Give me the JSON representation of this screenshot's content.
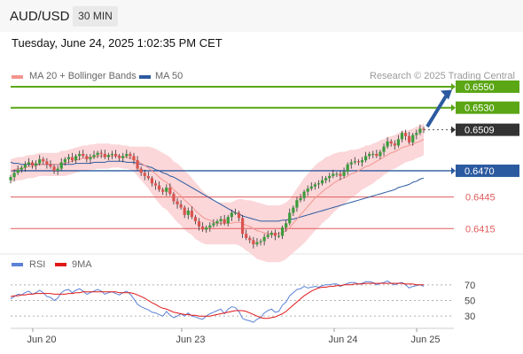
{
  "header": {
    "symbol": "AUD/USD",
    "timeframe": "30 MIN"
  },
  "datetime": "Tuesday, June 24, 2025 1:02:35 PM CET",
  "credit": "Research © 2025 Trading Central",
  "legend_price": [
    {
      "label": "MA 20 + Bollinger Bands",
      "color": "#f3958f"
    },
    {
      "label": "MA 50",
      "color": "#2c5aa0"
    }
  ],
  "legend_rsi": [
    {
      "label": "RSI",
      "color": "#5a82d6"
    },
    {
      "label": "9MA",
      "color": "#e01818"
    }
  ],
  "colors": {
    "resistance": "#5aa614",
    "pivot": "#2c5aa0",
    "support": "#e05c5c",
    "last": "#333333",
    "arrow": "#2c5aa0",
    "up": "#3c9c3c",
    "down": "#d9534f",
    "band": "#fbd7d9"
  },
  "chart_data": [
    {
      "type": "candlestick",
      "title": "AUD/USD 30 MIN",
      "x_tick_labels": [
        "Jun 20",
        "Jun 23",
        "Jun 24",
        "Jun 25"
      ],
      "ylim": [
        0.6395,
        0.6555
      ],
      "levels": [
        {
          "value": 0.655,
          "label": "0.6550",
          "kind": "resistance"
        },
        {
          "value": 0.653,
          "label": "0.6530",
          "kind": "resistance"
        },
        {
          "value": 0.6509,
          "label": "0.6509",
          "kind": "last"
        },
        {
          "value": 0.647,
          "label": "0.6470",
          "kind": "pivot"
        },
        {
          "value": 0.6445,
          "label": "0.6445",
          "kind": "support"
        },
        {
          "value": 0.6415,
          "label": "0.6415",
          "kind": "support"
        }
      ],
      "close": [
        0.6464,
        0.6468,
        0.6471,
        0.6473,
        0.6476,
        0.6478,
        0.6475,
        0.6477,
        0.6481,
        0.6479,
        0.6476,
        0.6474,
        0.647,
        0.6472,
        0.6478,
        0.6481,
        0.6483,
        0.648,
        0.6484,
        0.6486,
        0.6484,
        0.6481,
        0.6483,
        0.6485,
        0.6487,
        0.6486,
        0.6483,
        0.6485,
        0.6486,
        0.6484,
        0.6482,
        0.6484,
        0.6486,
        0.6484,
        0.648,
        0.6472,
        0.6468,
        0.6465,
        0.6463,
        0.6458,
        0.6456,
        0.6452,
        0.645,
        0.6454,
        0.6448,
        0.6441,
        0.6438,
        0.6435,
        0.6428,
        0.6432,
        0.6426,
        0.6422,
        0.6417,
        0.6414,
        0.6416,
        0.6418,
        0.642,
        0.6422,
        0.6424,
        0.642,
        0.6426,
        0.643,
        0.643,
        0.6425,
        0.641,
        0.6406,
        0.6404,
        0.64,
        0.6402,
        0.6403,
        0.6407,
        0.6409,
        0.6411,
        0.6408,
        0.6408,
        0.6416,
        0.642,
        0.643,
        0.6435,
        0.6442,
        0.6444,
        0.645,
        0.6453,
        0.6455,
        0.6457,
        0.6458,
        0.6461,
        0.6463,
        0.6465,
        0.6467,
        0.6467,
        0.6465,
        0.6469,
        0.6476,
        0.6478,
        0.6479,
        0.6478,
        0.648,
        0.6484,
        0.6486,
        0.6486,
        0.6484,
        0.6488,
        0.6493,
        0.6498,
        0.6496,
        0.6494,
        0.65,
        0.6506,
        0.6503,
        0.6497,
        0.6504,
        0.6506,
        0.651,
        0.6509
      ],
      "ma20": [
        0.647,
        0.6471,
        0.6472,
        0.6472,
        0.6473,
        0.6474,
        0.6474,
        0.6475,
        0.6476,
        0.6476,
        0.6476,
        0.6476,
        0.6476,
        0.6476,
        0.6477,
        0.6477,
        0.6478,
        0.6479,
        0.648,
        0.6481,
        0.6482,
        0.6482,
        0.6483,
        0.6483,
        0.6484,
        0.6484,
        0.6484,
        0.6484,
        0.6484,
        0.6484,
        0.6484,
        0.6483,
        0.6483,
        0.6482,
        0.6481,
        0.6479,
        0.6477,
        0.6475,
        0.6473,
        0.647,
        0.6467,
        0.6464,
        0.6461,
        0.6459,
        0.6456,
        0.6452,
        0.6449,
        0.6446,
        0.6442,
        0.6439,
        0.6436,
        0.6432,
        0.6429,
        0.6426,
        0.6424,
        0.6423,
        0.6421,
        0.642,
        0.642,
        0.642,
        0.642,
        0.642,
        0.6421,
        0.6421,
        0.642,
        0.6418,
        0.6417,
        0.6415,
        0.6413,
        0.6412,
        0.6411,
        0.641,
        0.641,
        0.641,
        0.641,
        0.6411,
        0.6413,
        0.6416,
        0.642,
        0.6424,
        0.6428,
        0.6432,
        0.6436,
        0.644,
        0.6444,
        0.6447,
        0.645,
        0.6453,
        0.6455,
        0.6458,
        0.646,
        0.6462,
        0.6463,
        0.6465,
        0.6467,
        0.6468,
        0.647,
        0.6472,
        0.6474,
        0.6475,
        0.6477,
        0.6479,
        0.6481,
        0.6483,
        0.6485,
        0.6487,
        0.6488,
        0.649,
        0.6492,
        0.6493,
        0.6494,
        0.6495,
        0.6497,
        0.6498,
        0.65
      ],
      "ma50": [
        0.6478,
        0.6477,
        0.6477,
        0.6476,
        0.6476,
        0.6476,
        0.6476,
        0.6476,
        0.6476,
        0.6476,
        0.6476,
        0.6476,
        0.6476,
        0.6476,
        0.6476,
        0.6476,
        0.6476,
        0.6476,
        0.6477,
        0.6477,
        0.6477,
        0.6477,
        0.6477,
        0.6478,
        0.6478,
        0.6478,
        0.6478,
        0.6479,
        0.6479,
        0.6479,
        0.6479,
        0.6479,
        0.6478,
        0.6478,
        0.6478,
        0.6477,
        0.6476,
        0.6475,
        0.6474,
        0.6473,
        0.6471,
        0.647,
        0.6468,
        0.6467,
        0.6465,
        0.6464,
        0.6462,
        0.646,
        0.6458,
        0.6456,
        0.6454,
        0.6452,
        0.645,
        0.6448,
        0.6446,
        0.6444,
        0.6442,
        0.644,
        0.6438,
        0.6436,
        0.6434,
        0.6432,
        0.643,
        0.6429,
        0.6427,
        0.6426,
        0.6425,
        0.6424,
        0.6423,
        0.6422,
        0.6422,
        0.6422,
        0.6422,
        0.6422,
        0.6422,
        0.6423,
        0.6423,
        0.6424,
        0.6424,
        0.6425,
        0.6426,
        0.6427,
        0.6428,
        0.6429,
        0.643,
        0.6431,
        0.6432,
        0.6433,
        0.6434,
        0.6435,
        0.6436,
        0.6437,
        0.6438,
        0.6439,
        0.644,
        0.6441,
        0.6442,
        0.6443,
        0.6444,
        0.6445,
        0.6446,
        0.6447,
        0.6448,
        0.6449,
        0.645,
        0.6451,
        0.6452,
        0.6454,
        0.6455,
        0.6456,
        0.6457,
        0.6459,
        0.646,
        0.6462,
        0.6463
      ],
      "band_width": [
        0.0011,
        0.0011,
        0.0011,
        0.0011,
        0.0011,
        0.0011,
        0.0011,
        0.0011,
        0.0011,
        0.0011,
        0.0011,
        0.0011,
        0.0011,
        0.0011,
        0.0012,
        0.0012,
        0.0012,
        0.0012,
        0.0012,
        0.0012,
        0.0012,
        0.0012,
        0.0012,
        0.0012,
        0.0012,
        0.0012,
        0.0012,
        0.0012,
        0.0011,
        0.0011,
        0.0011,
        0.0011,
        0.0011,
        0.0011,
        0.0012,
        0.0014,
        0.0016,
        0.0018,
        0.002,
        0.0022,
        0.0024,
        0.0025,
        0.0026,
        0.0026,
        0.0027,
        0.0027,
        0.0028,
        0.0028,
        0.0028,
        0.0028,
        0.0027,
        0.0027,
        0.0026,
        0.0025,
        0.0024,
        0.0023,
        0.0021,
        0.002,
        0.002,
        0.002,
        0.002,
        0.002,
        0.0021,
        0.0022,
        0.0023,
        0.0024,
        0.0025,
        0.0026,
        0.0027,
        0.0027,
        0.0027,
        0.0027,
        0.0027,
        0.0027,
        0.0027,
        0.0027,
        0.0027,
        0.0027,
        0.0028,
        0.0029,
        0.003,
        0.0031,
        0.0031,
        0.0031,
        0.0031,
        0.0031,
        0.003,
        0.003,
        0.0029,
        0.0028,
        0.0027,
        0.0026,
        0.0025,
        0.0024,
        0.0023,
        0.0022,
        0.0021,
        0.002,
        0.002,
        0.0019,
        0.0019,
        0.0018,
        0.0018,
        0.0017,
        0.0017,
        0.0016,
        0.0016,
        0.0016,
        0.0016,
        0.0015,
        0.0015,
        0.0015,
        0.0015,
        0.0015,
        0.0015
      ]
    },
    {
      "type": "line",
      "ylim": [
        20,
        80
      ],
      "y_ticks": [
        30,
        50,
        70
      ],
      "series": [
        {
          "name": "RSI",
          "values": [
            52,
            55,
            58,
            57,
            60,
            62,
            58,
            60,
            63,
            60,
            55,
            54,
            50,
            53,
            60,
            63,
            64,
            60,
            63,
            65,
            62,
            58,
            60,
            62,
            64,
            62,
            58,
            60,
            61,
            59,
            57,
            60,
            62,
            58,
            52,
            45,
            42,
            40,
            38,
            35,
            34,
            32,
            30,
            36,
            31,
            28,
            30,
            33,
            30,
            34,
            30,
            29,
            27,
            26,
            30,
            33,
            35,
            37,
            39,
            33,
            39,
            42,
            41,
            36,
            27,
            25,
            24,
            22,
            26,
            28,
            34,
            37,
            39,
            35,
            36,
            44,
            48,
            56,
            60,
            64,
            65,
            68,
            66,
            67,
            68,
            67,
            69,
            70,
            70,
            71,
            71,
            68,
            70,
            72,
            73,
            73,
            71,
            72,
            74,
            74,
            73,
            70,
            72,
            73,
            75,
            72,
            70,
            72,
            73,
            70,
            66,
            68,
            69,
            70,
            68
          ]
        },
        {
          "name": "9MA",
          "values": [
            55,
            56,
            56,
            57,
            57,
            58,
            58,
            59,
            59,
            59,
            59,
            59,
            58,
            58,
            58,
            58,
            59,
            59,
            60,
            60,
            61,
            61,
            61,
            61,
            61,
            61,
            61,
            61,
            61,
            61,
            60,
            60,
            60,
            60,
            59,
            57,
            55,
            53,
            50,
            47,
            45,
            42,
            40,
            39,
            37,
            35,
            34,
            33,
            32,
            32,
            31,
            31,
            30,
            30,
            30,
            30,
            31,
            32,
            33,
            34,
            35,
            36,
            37,
            37,
            37,
            36,
            34,
            32,
            30,
            28,
            27,
            27,
            28,
            29,
            31,
            33,
            36,
            40,
            44,
            48,
            52,
            56,
            59,
            62,
            64,
            66,
            67,
            67,
            68,
            68,
            69,
            69,
            70,
            70,
            70,
            71,
            71,
            71,
            72,
            72,
            72,
            72,
            72,
            72,
            72,
            72,
            72,
            72,
            72,
            71,
            71,
            71,
            70,
            70,
            70
          ]
        }
      ]
    }
  ]
}
